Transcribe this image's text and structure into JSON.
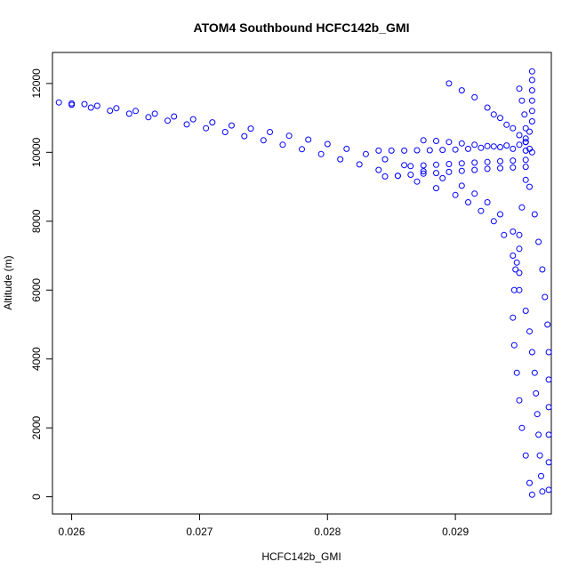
{
  "chart_data": {
    "type": "scatter",
    "title": "ATOM4 Southbound HCFC142b_GMI",
    "xlabel": "HCFC142b_GMI",
    "ylabel": "Altitude (m)",
    "xlim": [
      0.02585,
      0.02975
    ],
    "ylim": [
      -500,
      12900
    ],
    "xticks": [
      0.026,
      0.027,
      0.028,
      0.029
    ],
    "xtick_labels": [
      "0.026",
      "0.027",
      "0.028",
      "0.029"
    ],
    "yticks": [
      0,
      2000,
      4000,
      6000,
      8000,
      10000,
      12000
    ],
    "ytick_labels": [
      "0",
      "2000",
      "4000",
      "6000",
      "8000",
      "10000",
      "12000"
    ],
    "marker": "open-circle",
    "color": "#0000ff",
    "grid": false,
    "legend": "none",
    "series": [
      {
        "values": [
          [
            0.0259,
            11450
          ],
          [
            0.026,
            11420
          ],
          [
            0.0261,
            11400
          ],
          [
            0.0262,
            11350
          ],
          [
            0.02635,
            11280
          ],
          [
            0.0265,
            11200
          ],
          [
            0.02665,
            11120
          ],
          [
            0.0268,
            11040
          ],
          [
            0.02695,
            10960
          ],
          [
            0.0271,
            10870
          ],
          [
            0.02725,
            10780
          ],
          [
            0.0274,
            10690
          ],
          [
            0.02755,
            10590
          ],
          [
            0.0277,
            10480
          ],
          [
            0.02785,
            10370
          ],
          [
            0.028,
            10240
          ],
          [
            0.02815,
            10100
          ],
          [
            0.0283,
            9950
          ],
          [
            0.02845,
            9800
          ],
          [
            0.0286,
            9630
          ],
          [
            0.02875,
            9450
          ],
          [
            0.0289,
            9250
          ],
          [
            0.02905,
            9030
          ],
          [
            0.02915,
            8800
          ],
          [
            0.02925,
            8550
          ],
          [
            0.02935,
            8200
          ],
          [
            0.02945,
            7700
          ],
          [
            0.0295,
            7200
          ]
        ]
      },
      {
        "values": [
          [
            0.026,
            11380
          ],
          [
            0.02615,
            11300
          ],
          [
            0.0263,
            11210
          ],
          [
            0.02645,
            11120
          ],
          [
            0.0266,
            11020
          ],
          [
            0.02675,
            10920
          ],
          [
            0.0269,
            10810
          ],
          [
            0.02705,
            10700
          ],
          [
            0.0272,
            10590
          ],
          [
            0.02735,
            10470
          ],
          [
            0.0275,
            10350
          ],
          [
            0.02765,
            10220
          ],
          [
            0.0278,
            10090
          ],
          [
            0.02795,
            9950
          ],
          [
            0.0281,
            9800
          ],
          [
            0.02825,
            9650
          ],
          [
            0.0284,
            9490
          ],
          [
            0.02855,
            9320
          ],
          [
            0.0287,
            9150
          ],
          [
            0.02885,
            8960
          ],
          [
            0.029,
            8760
          ],
          [
            0.0291,
            8550
          ],
          [
            0.0292,
            8300
          ],
          [
            0.0293,
            8000
          ],
          [
            0.02938,
            7600
          ],
          [
            0.02945,
            7000
          ],
          [
            0.0295,
            6500
          ]
        ]
      },
      {
        "values": [
          [
            0.0284,
            10050
          ],
          [
            0.0285,
            10050
          ],
          [
            0.0286,
            10050
          ],
          [
            0.0287,
            10060
          ],
          [
            0.0288,
            10060
          ],
          [
            0.0289,
            10070
          ],
          [
            0.029,
            10080
          ],
          [
            0.0291,
            10100
          ],
          [
            0.0292,
            10130
          ],
          [
            0.0293,
            10170
          ],
          [
            0.0294,
            10200
          ],
          [
            0.0295,
            10220
          ]
        ]
      },
      {
        "values": [
          [
            0.02845,
            9300
          ],
          [
            0.02855,
            9320
          ],
          [
            0.02865,
            9350
          ],
          [
            0.02875,
            9380
          ],
          [
            0.02885,
            9400
          ],
          [
            0.02895,
            9430
          ],
          [
            0.02905,
            9460
          ],
          [
            0.02915,
            9490
          ],
          [
            0.02925,
            9520
          ],
          [
            0.02935,
            9540
          ],
          [
            0.02945,
            9560
          ],
          [
            0.02955,
            9580
          ]
        ]
      },
      {
        "values": [
          [
            0.02865,
            9600
          ],
          [
            0.02875,
            9620
          ],
          [
            0.02885,
            9640
          ],
          [
            0.02895,
            9660
          ],
          [
            0.02905,
            9680
          ],
          [
            0.02915,
            9700
          ],
          [
            0.02925,
            9720
          ],
          [
            0.02935,
            9740
          ],
          [
            0.02945,
            9760
          ],
          [
            0.02955,
            9780
          ]
        ]
      },
      {
        "values": [
          [
            0.02875,
            10350
          ],
          [
            0.02885,
            10330
          ],
          [
            0.02895,
            10300
          ],
          [
            0.02905,
            10260
          ],
          [
            0.02915,
            10220
          ],
          [
            0.02925,
            10180
          ],
          [
            0.02935,
            10150
          ],
          [
            0.02945,
            10100
          ],
          [
            0.02955,
            10050
          ]
        ]
      },
      {
        "values": [
          [
            0.02895,
            12000
          ],
          [
            0.02905,
            11800
          ],
          [
            0.02915,
            11600
          ],
          [
            0.02925,
            11300
          ],
          [
            0.02935,
            11000
          ],
          [
            0.02945,
            10700
          ],
          [
            0.02955,
            10400
          ],
          [
            0.0296,
            10000
          ]
        ]
      },
      {
        "values": [
          [
            0.0293,
            11100
          ],
          [
            0.0294,
            10800
          ],
          [
            0.0295,
            10500
          ],
          [
            0.02955,
            10300
          ],
          [
            0.02958,
            10100
          ]
        ]
      },
      {
        "values": [
          [
            0.0296,
            12350
          ],
          [
            0.0296,
            12100
          ],
          [
            0.0296,
            11800
          ],
          [
            0.0296,
            11500
          ],
          [
            0.0296,
            11200
          ],
          [
            0.0296,
            10900
          ],
          [
            0.02958,
            10600
          ],
          [
            0.02955,
            10300
          ]
        ]
      },
      {
        "values": [
          [
            0.0295,
            11850
          ],
          [
            0.02952,
            11500
          ],
          [
            0.02954,
            11100
          ],
          [
            0.02955,
            10700
          ],
          [
            0.02955,
            10300
          ]
        ]
      },
      {
        "values": [
          [
            0.02947,
            6600
          ],
          [
            0.0295,
            6000
          ],
          [
            0.02955,
            5400
          ],
          [
            0.02958,
            4800
          ],
          [
            0.0296,
            4200
          ],
          [
            0.02962,
            3600
          ],
          [
            0.02963,
            3000
          ],
          [
            0.02964,
            2400
          ],
          [
            0.02965,
            1800
          ],
          [
            0.02966,
            1200
          ],
          [
            0.02967,
            600
          ],
          [
            0.02968,
            150
          ]
        ]
      },
      {
        "values": [
          [
            0.02958,
            9000
          ],
          [
            0.02962,
            8200
          ],
          [
            0.02965,
            7400
          ],
          [
            0.02968,
            6600
          ],
          [
            0.0297,
            5800
          ],
          [
            0.02972,
            5000
          ],
          [
            0.02973,
            4200
          ],
          [
            0.02973,
            3400
          ],
          [
            0.02973,
            2600
          ],
          [
            0.02973,
            1800
          ],
          [
            0.02973,
            1000
          ],
          [
            0.02973,
            200
          ]
        ]
      },
      {
        "values": [
          [
            0.02955,
            9200
          ],
          [
            0.02952,
            8400
          ],
          [
            0.0295,
            7600
          ],
          [
            0.02948,
            6800
          ],
          [
            0.02946,
            6000
          ],
          [
            0.02945,
            5200
          ],
          [
            0.02946,
            4400
          ],
          [
            0.02948,
            3600
          ],
          [
            0.0295,
            2800
          ],
          [
            0.02952,
            2000
          ],
          [
            0.02955,
            1200
          ],
          [
            0.02958,
            400
          ],
          [
            0.0296,
            60
          ]
        ]
      }
    ]
  }
}
